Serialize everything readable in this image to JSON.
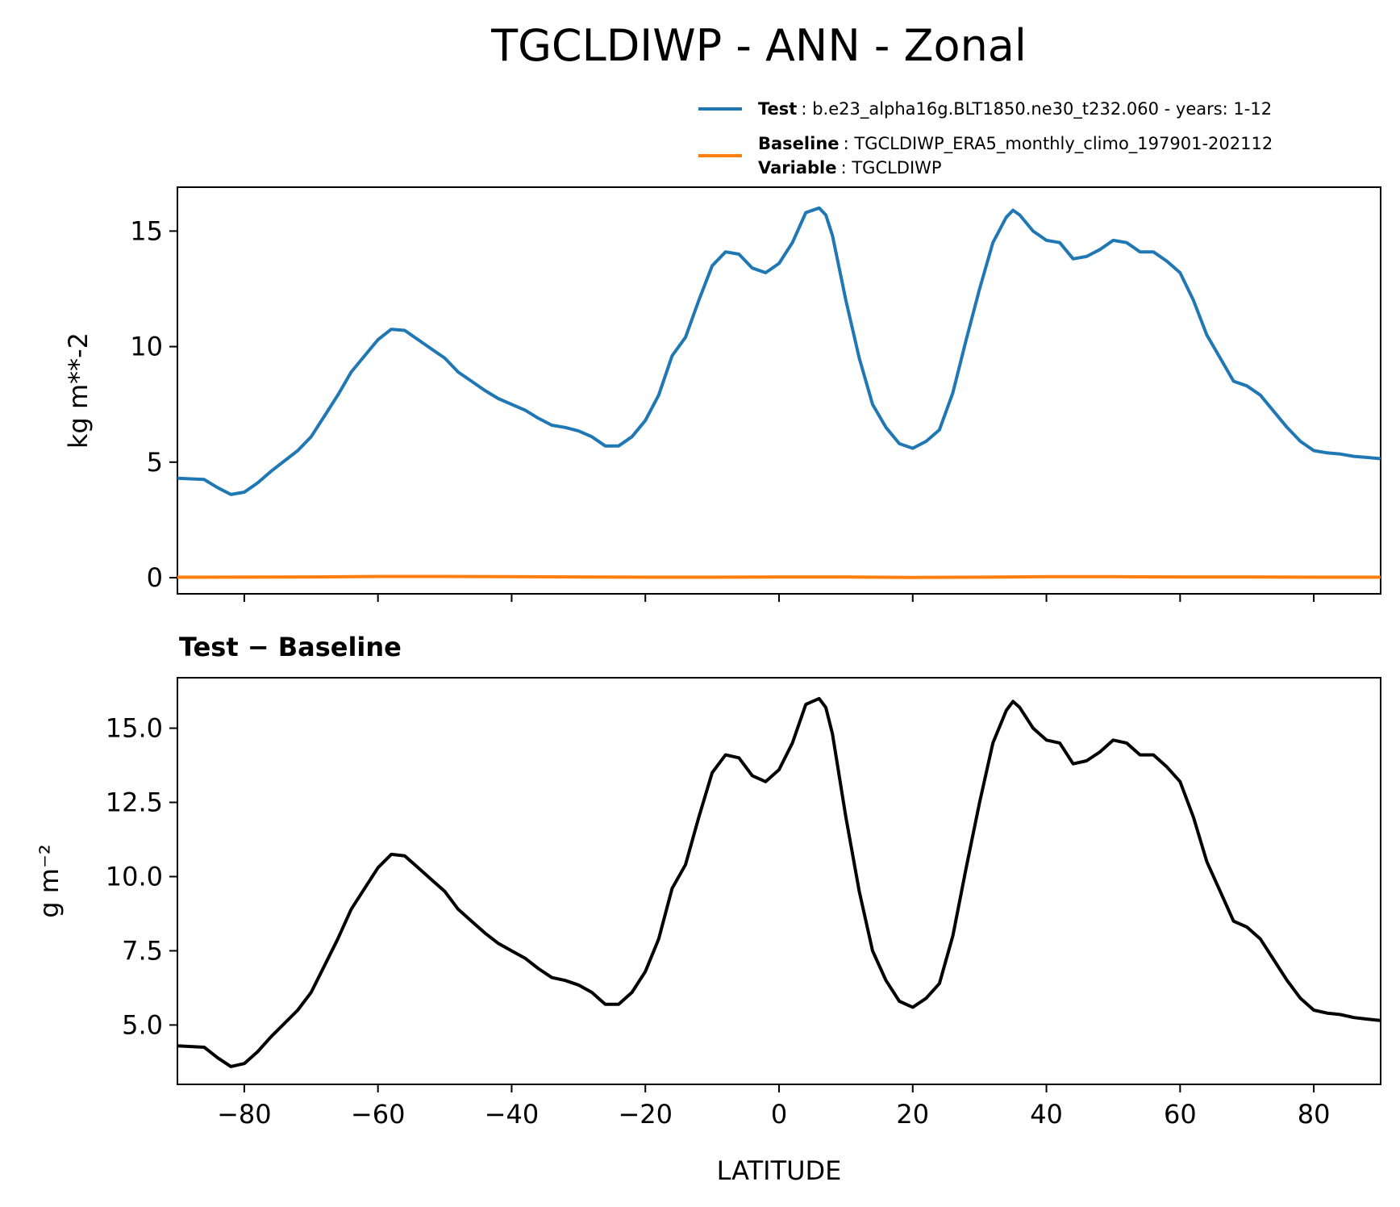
{
  "title": "TGCLDIWP - ANN - Zonal",
  "legend": {
    "test": {
      "label": "Test",
      "text": "b.e23_alpha16g.BLT1850.ne30_t232.060 - years: 1-12",
      "color": "#1f77b4"
    },
    "baseline": {
      "label": "Baseline",
      "text": "TGCLDIWP_ERA5_monthly_climo_197901-202112",
      "color": "#ff7f0e"
    },
    "variable": {
      "label": "Variable",
      "text": "TGCLDIWP"
    }
  },
  "chart_data": [
    {
      "type": "line",
      "panel": "top",
      "ylabel": "kg m**-2",
      "xlim": [
        -90,
        90
      ],
      "ylim": [
        -0.7,
        16.9
      ],
      "yticks": [
        0,
        5,
        10,
        15
      ],
      "ytick_labels": [
        "0",
        "5",
        "10",
        "15"
      ],
      "xticks": [
        -80,
        -60,
        -40,
        -20,
        0,
        20,
        40,
        60,
        80
      ],
      "grid": false,
      "series": [
        {
          "name": "Test",
          "color": "#1f77b4",
          "x": [
            -90,
            -86,
            -84,
            -82,
            -80,
            -78,
            -76,
            -72,
            -70,
            -68,
            -66,
            -64,
            -62,
            -60,
            -58,
            -56,
            -54,
            -52,
            -50,
            -48,
            -46,
            -44,
            -42,
            -40,
            -38,
            -36,
            -34,
            -32,
            -30,
            -28,
            -26,
            -24,
            -22,
            -20,
            -18,
            -16,
            -14,
            -12,
            -10,
            -8,
            -6,
            -4,
            -2,
            0,
            2,
            4,
            6,
            7,
            8,
            10,
            12,
            14,
            16,
            18,
            20,
            22,
            24,
            26,
            28,
            30,
            32,
            34,
            35,
            36,
            38,
            40,
            42,
            44,
            46,
            48,
            50,
            52,
            54,
            56,
            58,
            60,
            62,
            64,
            66,
            68,
            70,
            72,
            74,
            76,
            78,
            80,
            82,
            84,
            86,
            88,
            90
          ],
          "y": [
            4.3,
            4.25,
            3.9,
            3.6,
            3.7,
            4.1,
            4.6,
            5.5,
            6.1,
            7.0,
            7.9,
            8.9,
            9.6,
            10.3,
            10.75,
            10.7,
            10.3,
            9.9,
            9.5,
            8.9,
            8.5,
            8.1,
            7.75,
            7.5,
            7.25,
            6.9,
            6.6,
            6.5,
            6.35,
            6.1,
            5.7,
            5.7,
            6.1,
            6.8,
            7.9,
            9.6,
            10.4,
            12.0,
            13.5,
            14.1,
            14.0,
            13.4,
            13.2,
            13.6,
            14.5,
            15.8,
            16.0,
            15.7,
            14.8,
            12.0,
            9.5,
            7.5,
            6.5,
            5.8,
            5.6,
            5.9,
            6.4,
            8.0,
            10.3,
            12.5,
            14.5,
            15.6,
            15.9,
            15.7,
            15.0,
            14.6,
            14.5,
            13.8,
            13.9,
            14.2,
            14.6,
            14.5,
            14.1,
            14.1,
            13.7,
            13.2,
            12.0,
            10.5,
            9.5,
            8.5,
            8.3,
            7.9,
            7.2,
            6.5,
            5.9,
            5.5,
            5.4,
            5.35,
            5.25,
            5.2,
            5.15
          ]
        },
        {
          "name": "Baseline",
          "color": "#ff7f0e",
          "x": [
            -90,
            -70,
            -60,
            -50,
            -40,
            -30,
            -20,
            -10,
            0,
            10,
            20,
            30,
            40,
            50,
            60,
            70,
            80,
            90
          ],
          "y": [
            0.02,
            0.03,
            0.05,
            0.05,
            0.04,
            0.03,
            0.02,
            0.02,
            0.03,
            0.03,
            0.01,
            0.02,
            0.04,
            0.04,
            0.03,
            0.03,
            0.02,
            0.02
          ]
        }
      ]
    },
    {
      "type": "line",
      "panel": "bottom",
      "title": "Test − Baseline",
      "ylabel": "g m⁻²",
      "xlabel": "LATITUDE",
      "xlim": [
        -90,
        90
      ],
      "ylim": [
        3.0,
        16.7
      ],
      "yticks": [
        5.0,
        7.5,
        10.0,
        12.5,
        15.0
      ],
      "ytick_labels": [
        "5.0",
        "7.5",
        "10.0",
        "12.5",
        "15.0"
      ],
      "xticks": [
        -80,
        -60,
        -40,
        -20,
        0,
        20,
        40,
        60,
        80
      ],
      "xtick_labels": [
        "−80",
        "−60",
        "−40",
        "−20",
        "0",
        "20",
        "40",
        "60",
        "80"
      ],
      "grid": false,
      "series": [
        {
          "color": "#000000",
          "x": [
            -90,
            -86,
            -84,
            -82,
            -80,
            -78,
            -76,
            -72,
            -70,
            -68,
            -66,
            -64,
            -62,
            -60,
            -58,
            -56,
            -54,
            -52,
            -50,
            -48,
            -46,
            -44,
            -42,
            -40,
            -38,
            -36,
            -34,
            -32,
            -30,
            -28,
            -26,
            -24,
            -22,
            -20,
            -18,
            -16,
            -14,
            -12,
            -10,
            -8,
            -6,
            -4,
            -2,
            0,
            2,
            4,
            6,
            7,
            8,
            10,
            12,
            14,
            16,
            18,
            20,
            22,
            24,
            26,
            28,
            30,
            32,
            34,
            35,
            36,
            38,
            40,
            42,
            44,
            46,
            48,
            50,
            52,
            54,
            56,
            58,
            60,
            62,
            64,
            66,
            68,
            70,
            72,
            74,
            76,
            78,
            80,
            82,
            84,
            86,
            88,
            90
          ],
          "y": [
            4.3,
            4.25,
            3.9,
            3.6,
            3.7,
            4.1,
            4.6,
            5.5,
            6.1,
            7.0,
            7.9,
            8.9,
            9.6,
            10.3,
            10.75,
            10.7,
            10.3,
            9.9,
            9.5,
            8.9,
            8.5,
            8.1,
            7.75,
            7.5,
            7.25,
            6.9,
            6.6,
            6.5,
            6.35,
            6.1,
            5.7,
            5.7,
            6.1,
            6.8,
            7.9,
            9.6,
            10.4,
            12.0,
            13.5,
            14.1,
            14.0,
            13.4,
            13.2,
            13.6,
            14.5,
            15.8,
            16.0,
            15.7,
            14.8,
            12.0,
            9.5,
            7.5,
            6.5,
            5.8,
            5.6,
            5.9,
            6.4,
            8.0,
            10.3,
            12.5,
            14.5,
            15.6,
            15.9,
            15.7,
            15.0,
            14.6,
            14.5,
            13.8,
            13.9,
            14.2,
            14.6,
            14.5,
            14.1,
            14.1,
            13.7,
            13.2,
            12.0,
            10.5,
            9.5,
            8.5,
            8.3,
            7.9,
            7.2,
            6.5,
            5.9,
            5.5,
            5.4,
            5.35,
            5.25,
            5.2,
            5.15
          ]
        }
      ]
    }
  ]
}
